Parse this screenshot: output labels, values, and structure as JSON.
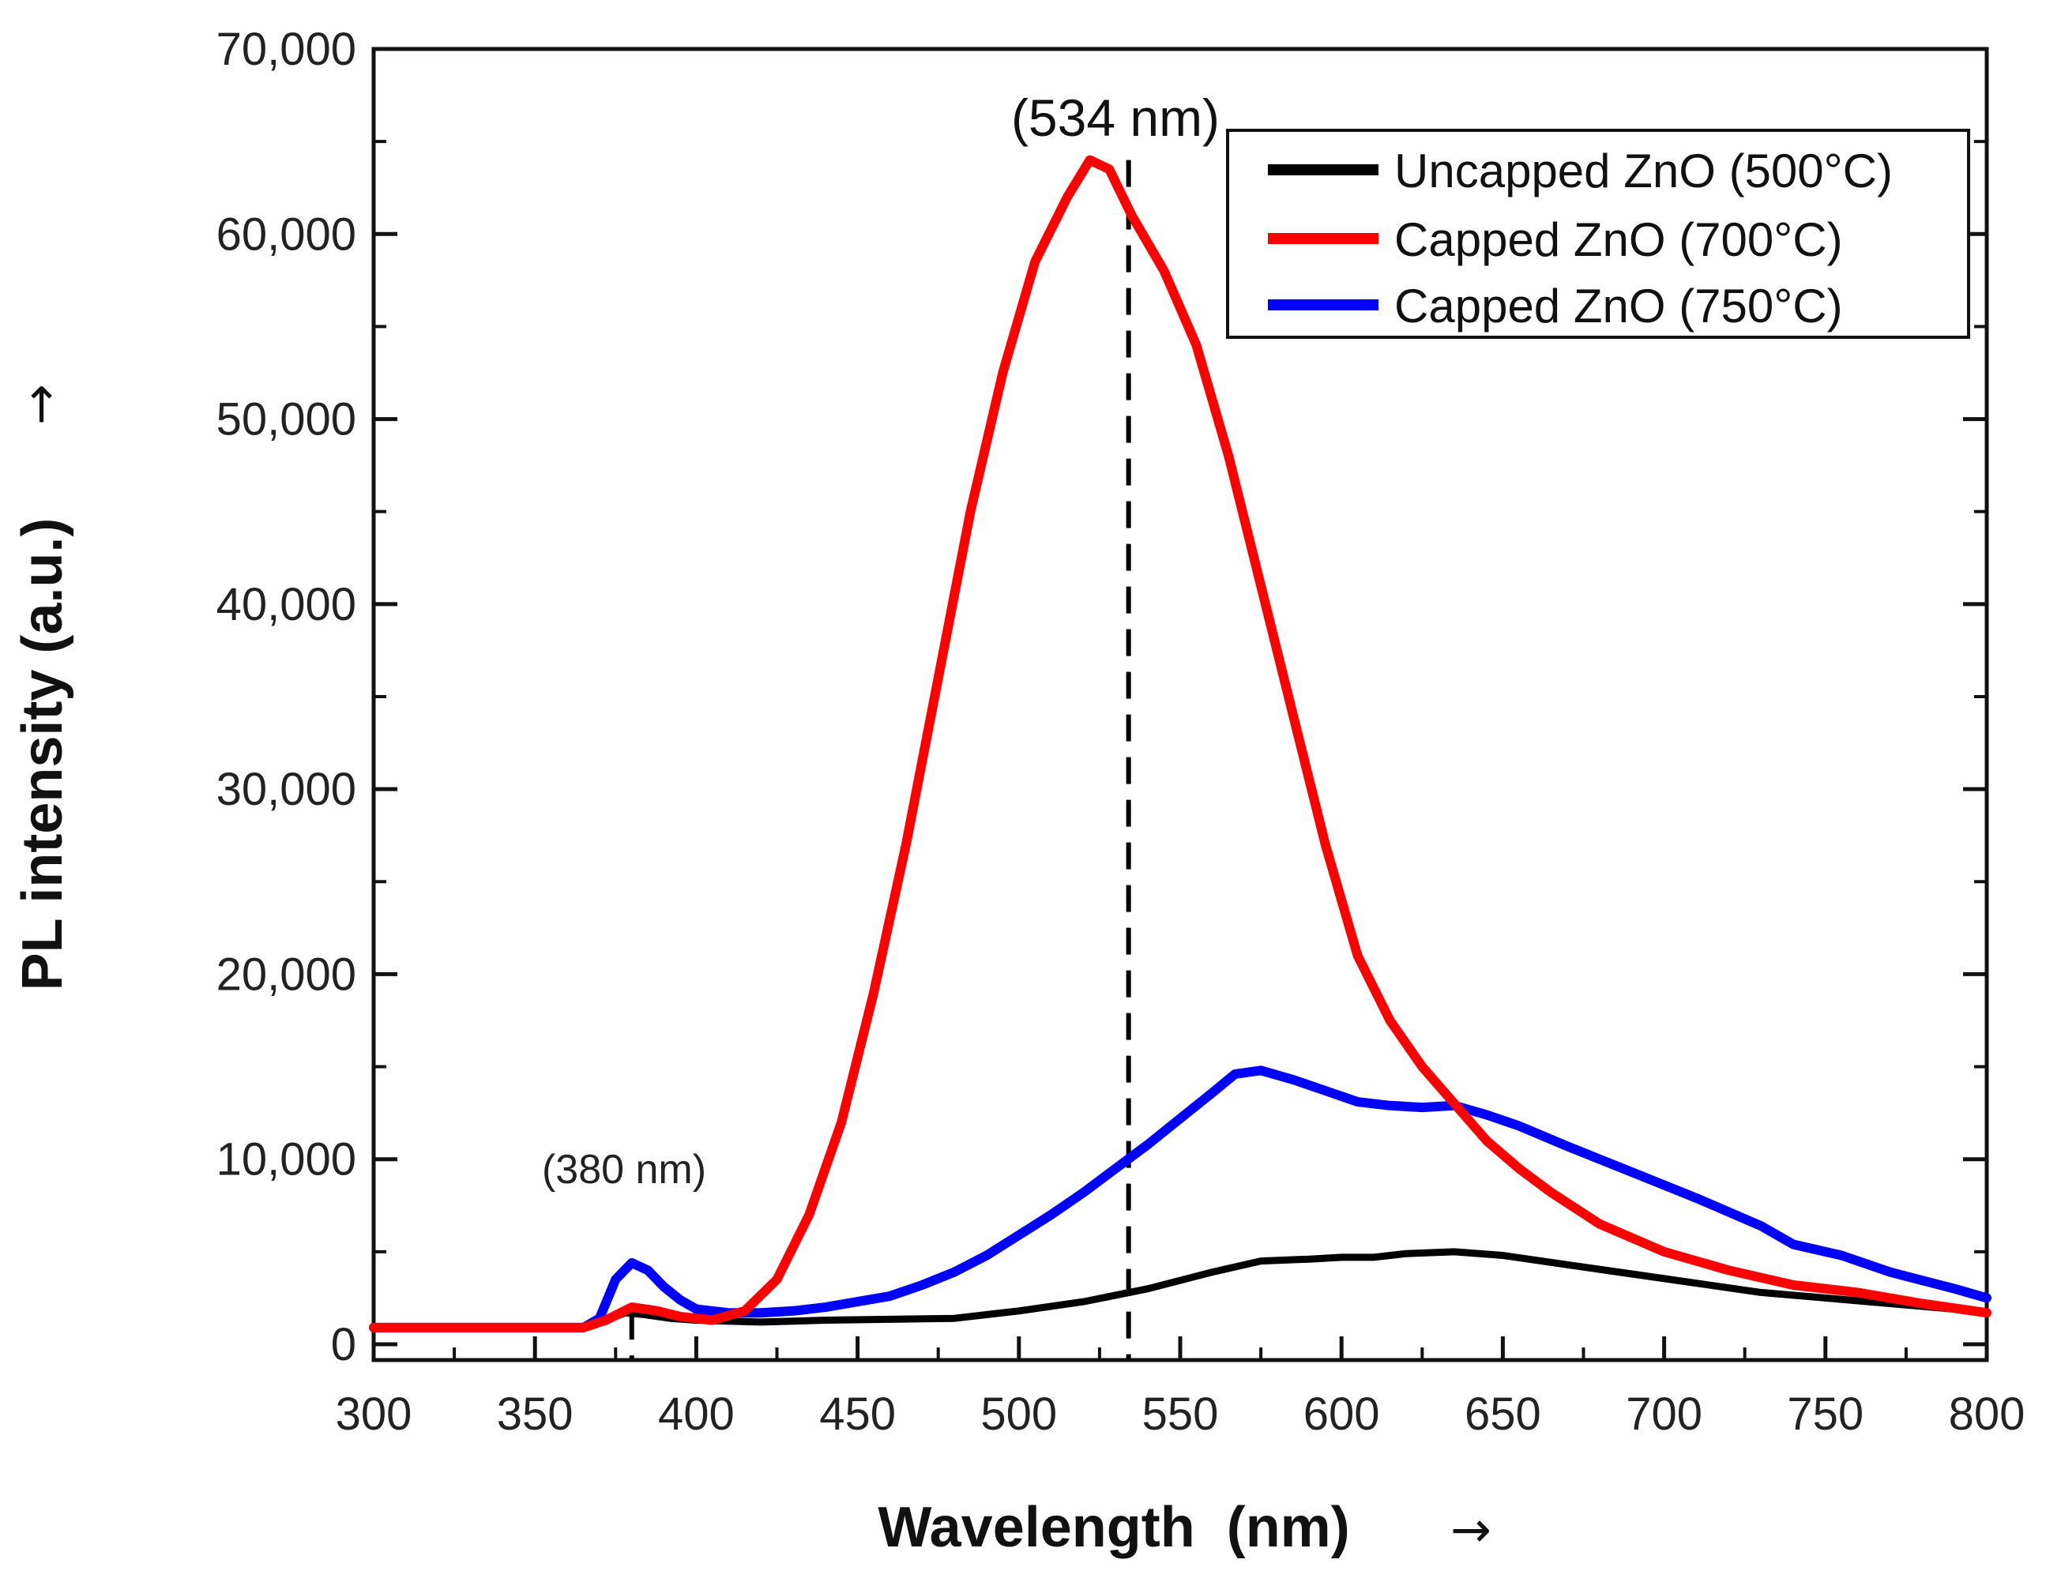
{
  "chart_data": {
    "type": "line",
    "title": "",
    "xlabel": "Wavelength  (nm)",
    "xlabel_arrow": "→",
    "ylabel": "PL intensity (a.u.)",
    "ylabel_arrow": "→",
    "xlim": [
      300,
      800
    ],
    "ylim": [
      0,
      70000
    ],
    "x_ticks": [
      300,
      350,
      400,
      450,
      500,
      550,
      600,
      650,
      700,
      750,
      800
    ],
    "x_tick_labels": [
      "300",
      "350",
      "400",
      "450",
      "500",
      "550",
      "600",
      "650",
      "700",
      "750",
      "800"
    ],
    "y_ticks": [
      0,
      10000,
      20000,
      30000,
      40000,
      50000,
      60000,
      70000
    ],
    "y_tick_labels": [
      "0",
      "10,000",
      "20,000",
      "30,000",
      "40,000",
      "50,000",
      "60,000",
      "70,000"
    ],
    "legend_position": "top-right",
    "series": [
      {
        "name": "Uncapped ZnO (500°C)",
        "color": "#000000",
        "x": [
          300,
          365,
          372,
          378,
          384,
          392,
          400,
          410,
          420,
          440,
          460,
          480,
          500,
          520,
          540,
          560,
          575,
          590,
          600,
          610,
          620,
          635,
          650,
          670,
          690,
          710,
          730,
          750,
          770,
          790,
          800
        ],
        "y": [
          900,
          900,
          1300,
          1700,
          1600,
          1400,
          1300,
          1250,
          1200,
          1300,
          1350,
          1400,
          1800,
          2300,
          3000,
          3900,
          4500,
          4600,
          4700,
          4700,
          4900,
          5000,
          4800,
          4300,
          3800,
          3300,
          2800,
          2500,
          2200,
          1900,
          1700
        ]
      },
      {
        "name": "Capped ZnO (700°C)",
        "color": "#ff0000",
        "x": [
          300,
          365,
          372,
          380,
          388,
          395,
          405,
          415,
          425,
          435,
          445,
          455,
          465,
          475,
          485,
          495,
          505,
          515,
          522,
          528,
          535,
          545,
          555,
          565,
          575,
          585,
          595,
          605,
          615,
          625,
          635,
          645,
          655,
          665,
          680,
          700,
          720,
          740,
          760,
          780,
          800
        ],
        "y": [
          900,
          900,
          1300,
          2000,
          1800,
          1500,
          1300,
          1800,
          3500,
          7000,
          12000,
          19000,
          27000,
          36000,
          45000,
          52500,
          58500,
          62000,
          64000,
          63500,
          61000,
          58000,
          54000,
          48000,
          41000,
          34000,
          27000,
          21000,
          17500,
          15000,
          13000,
          11000,
          9500,
          8200,
          6500,
          5000,
          4000,
          3200,
          2800,
          2200,
          1700
        ]
      },
      {
        "name": "Capped ZnO (750°C)",
        "color": "#0000ff",
        "x": [
          300,
          365,
          370,
          375,
          380,
          385,
          390,
          395,
          400,
          410,
          420,
          430,
          440,
          450,
          460,
          470,
          480,
          490,
          500,
          510,
          520,
          530,
          540,
          550,
          560,
          567,
          575,
          585,
          595,
          605,
          615,
          625,
          635,
          645,
          655,
          670,
          690,
          710,
          730,
          740,
          750,
          755,
          770,
          790,
          800
        ],
        "y": [
          900,
          900,
          1400,
          3500,
          4400,
          4000,
          3100,
          2400,
          1900,
          1700,
          1700,
          1800,
          2000,
          2300,
          2600,
          3200,
          3900,
          4800,
          5900,
          7000,
          8200,
          9500,
          10800,
          12200,
          13600,
          14600,
          14800,
          14300,
          13700,
          13100,
          12900,
          12800,
          12900,
          12400,
          11800,
          10700,
          9300,
          7900,
          6400,
          5400,
          5000,
          4800,
          3900,
          3000,
          2500
        ]
      }
    ],
    "annotations": [
      {
        "text": "(534 nm)",
        "x": 534,
        "dashed_line_from_y": 0,
        "dashed_line_to_y": 64000
      },
      {
        "text": "(380 nm)",
        "x": 380,
        "dashed_line_from_y": 0,
        "dashed_line_to_y": 1700
      }
    ]
  }
}
